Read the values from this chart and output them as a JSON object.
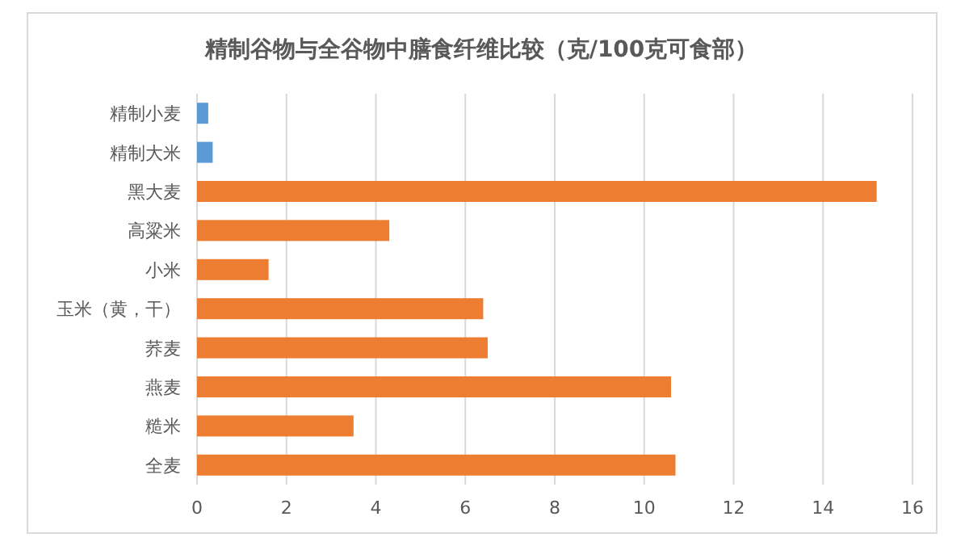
{
  "chart_data": {
    "type": "bar",
    "orientation": "horizontal",
    "title": "精制谷物与全谷物中膳食纤维比较（克/100克可食部）",
    "categories": [
      "精制小麦",
      "精制大米",
      "黑大麦",
      "高粱米",
      "小米",
      "玉米（黄，干）",
      "荞麦",
      "燕麦",
      "糙米",
      "全麦"
    ],
    "values": [
      0.25,
      0.35,
      15.2,
      4.3,
      1.6,
      6.4,
      6.5,
      10.6,
      3.5,
      10.7
    ],
    "colors": [
      "#5b9bd5",
      "#5b9bd5",
      "#ed7d31",
      "#ed7d31",
      "#ed7d31",
      "#ed7d31",
      "#ed7d31",
      "#ed7d31",
      "#ed7d31",
      "#ed7d31"
    ],
    "xlim": [
      0,
      16
    ],
    "xticks": [
      0,
      2,
      4,
      6,
      8,
      10,
      12,
      14,
      16
    ],
    "grid": "x"
  }
}
